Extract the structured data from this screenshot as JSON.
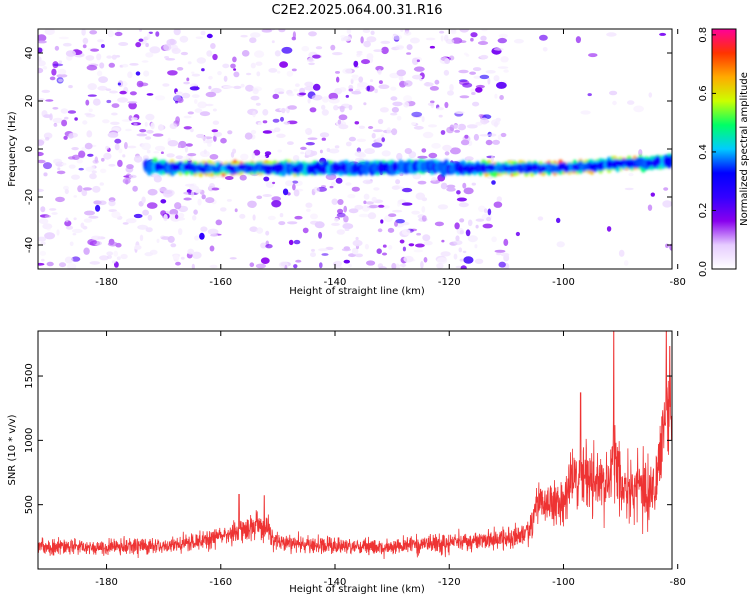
{
  "title": "C2E2.2025.064.00.31.R16",
  "chart_data": [
    {
      "type": "heatmap",
      "name": "spectrogram",
      "xlabel": "Height of straight line (km)",
      "ylabel": "Frequency (Hz)",
      "xlim": [
        -192,
        -81
      ],
      "ylim": [
        -50,
        50
      ],
      "xticks": [
        -180,
        -160,
        -140,
        -120,
        -100,
        -80
      ],
      "yticks": [
        -40,
        -20,
        0,
        20,
        40
      ],
      "colorbar": {
        "label": "Normalized spectral amplitude",
        "range": [
          0,
          0.82
        ],
        "ticks": [
          0.0,
          0.2,
          0.4,
          0.6,
          0.8
        ],
        "tick_labels": [
          "0.0",
          "0.2",
          "0.4",
          "0.6",
          "0.8"
        ],
        "colors": [
          "#ffffff",
          "#e6ccff",
          "#8800ee",
          "#3300ff",
          "#0000ff",
          "#00ccff",
          "#00ff66",
          "#ccff00",
          "#ffaa00",
          "#ff3300",
          "#ff0099"
        ]
      },
      "ridge": {
        "x_start": -173,
        "x_end": -81,
        "frequency": [
          [
            -173,
            -7
          ],
          [
            -165,
            -8
          ],
          [
            -160,
            -8
          ],
          [
            -155,
            -8
          ],
          [
            -150,
            -8
          ],
          [
            -145,
            -8
          ],
          [
            -140,
            -8
          ],
          [
            -135,
            -8
          ],
          [
            -130,
            -8
          ],
          [
            -125,
            -7
          ],
          [
            -120,
            -8
          ],
          [
            -115,
            -8
          ],
          [
            -110,
            -8
          ],
          [
            -105,
            -8
          ],
          [
            -100,
            -8
          ],
          [
            -95,
            -7
          ],
          [
            -90,
            -6
          ],
          [
            -85,
            -6
          ],
          [
            -81,
            -5
          ]
        ],
        "amplitude": [
          [
            -173,
            0.4
          ],
          [
            -168,
            0.55
          ],
          [
            -165,
            0.6
          ],
          [
            -160,
            0.72
          ],
          [
            -155,
            0.7
          ],
          [
            -150,
            0.55
          ],
          [
            -145,
            0.5
          ],
          [
            -140,
            0.45
          ],
          [
            -135,
            0.4
          ],
          [
            -130,
            0.45
          ],
          [
            -125,
            0.45
          ],
          [
            -120,
            0.4
          ],
          [
            -115,
            0.5
          ],
          [
            -111,
            0.7
          ],
          [
            -105,
            0.55
          ],
          [
            -103,
            0.65
          ],
          [
            -100,
            0.72
          ],
          [
            -97,
            0.7
          ],
          [
            -93,
            0.55
          ],
          [
            -89,
            0.65
          ],
          [
            -85,
            0.5
          ],
          [
            -81,
            0.45
          ]
        ]
      },
      "noise_level": 0.12,
      "noise_quiet_x_above": -110
    },
    {
      "type": "line",
      "name": "snr",
      "xlabel": "Height of straight line (km)",
      "ylabel": "SNR (10 * v/v)",
      "xlim": [
        -192,
        -81
      ],
      "ylim": [
        0,
        1850
      ],
      "xticks": [
        -180,
        -160,
        -140,
        -120,
        -100,
        -80
      ],
      "yticks": [
        500,
        1000,
        1500
      ],
      "color": "#ee3333",
      "envelope": {
        "x": [
          -192,
          -170,
          -160,
          -156,
          -152,
          -150,
          -140,
          -130,
          -120,
          -110,
          -106,
          -104,
          -102,
          -100,
          -98,
          -96,
          -94,
          -92,
          -91,
          -90,
          -88,
          -86,
          -84,
          -82,
          -81
        ],
        "mean": [
          170,
          175,
          240,
          300,
          330,
          200,
          180,
          175,
          200,
          230,
          300,
          550,
          500,
          520,
          700,
          750,
          650,
          650,
          900,
          640,
          600,
          650,
          560,
          1300,
          1100
        ],
        "spread": [
          60,
          60,
          80,
          100,
          110,
          70,
          60,
          60,
          70,
          80,
          100,
          150,
          150,
          160,
          230,
          260,
          220,
          220,
          400,
          220,
          230,
          280,
          220,
          300,
          350
        ]
      },
      "peaks": [
        [
          -91.2,
          1850
        ],
        [
          -97,
          1370
        ],
        [
          -82,
          1850
        ],
        [
          -81.4,
          1730
        ],
        [
          -156.8,
          580
        ],
        [
          -152.4,
          570
        ],
        [
          -104,
          620
        ]
      ]
    }
  ]
}
